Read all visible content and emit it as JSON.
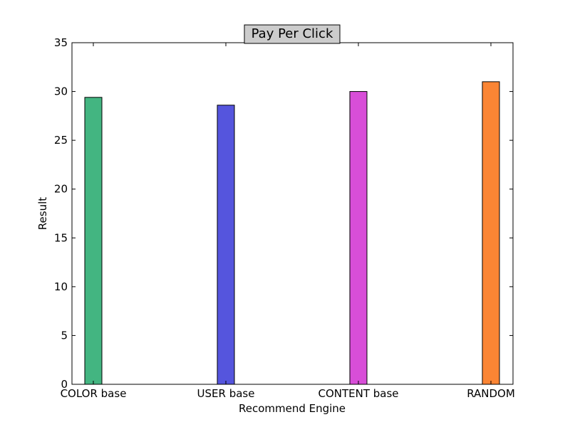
{
  "chart_data": {
    "type": "bar",
    "title": "Pay Per Click",
    "xlabel": "Recommend Engine",
    "ylabel": "Result",
    "categories": [
      "COLOR base",
      "USER base",
      "CONTENT base",
      "RANDOM"
    ],
    "values": [
      29.4,
      28.6,
      30.0,
      31.0
    ],
    "colors": [
      "#43b581",
      "#5555dd",
      "#d84ed8",
      "#fb8534"
    ],
    "ylim": [
      0,
      35
    ],
    "yticks": [
      0,
      5,
      10,
      15,
      20,
      25,
      30,
      35
    ],
    "grid": false,
    "legend": "none"
  }
}
